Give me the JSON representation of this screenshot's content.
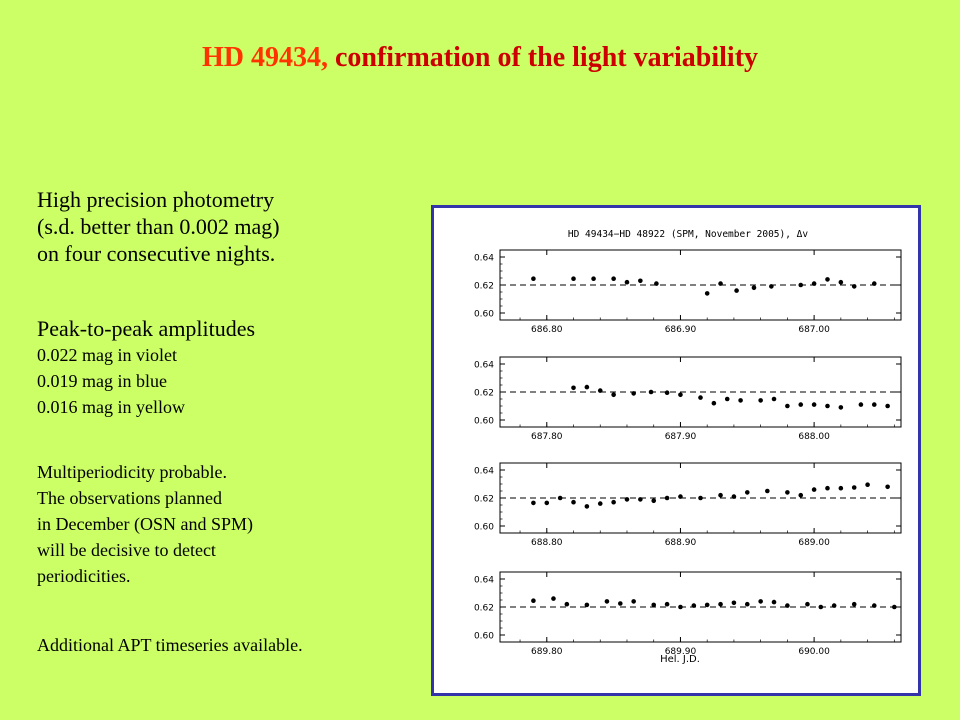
{
  "slide": {
    "title_star": "HD 49434,",
    "title_rest": "confirmation of the light variability",
    "paragraph1": [
      "High precision  photometry",
      "(s.d. better than 0.002 mag)",
      "on four consecutive nights."
    ],
    "paragraph2_heading": "Peak-to-peak amplitudes",
    "paragraph2_items": [
      "0.022 mag in violet",
      "0.019 mag in blue",
      "0.016 mag in yellow"
    ],
    "paragraph3": [
      "Multiperiodicity probable.",
      "The observations planned",
      "in December (OSN and SPM)",
      "will be decisive to detect",
      "periodicities."
    ],
    "paragraph4": "Additional APT timeseries available.",
    "colors": {
      "background": "#ccff66",
      "title_star": "#ff3300",
      "title_rest": "#cc0000",
      "frame": "#3333aa"
    }
  },
  "chart_data": {
    "type": "scatter",
    "title": "HD 49434−HD 48922 (SPM, November 2005), Δv",
    "xlabel": "Hel. J.D.",
    "ylim": [
      0.595,
      0.645
    ],
    "y_ticks": [
      "0.64",
      "0.62",
      "0.60"
    ],
    "reference_line": 0.62,
    "panels": [
      {
        "xlim": [
          686.765,
          687.065
        ],
        "x_ticks": [
          "686.80",
          "686.90",
          "687.00"
        ],
        "x": [
          686.79,
          686.82,
          686.835,
          686.85,
          686.86,
          686.87,
          686.882,
          686.92,
          686.93,
          686.942,
          686.955,
          686.968,
          686.99,
          687.0,
          687.01,
          687.02,
          687.03,
          687.045
        ],
        "y": [
          0.6245,
          0.6245,
          0.6245,
          0.6245,
          0.622,
          0.623,
          0.621,
          0.614,
          0.621,
          0.616,
          0.618,
          0.619,
          0.62,
          0.621,
          0.624,
          0.622,
          0.619,
          0.621
        ]
      },
      {
        "xlim": [
          687.765,
          688.065
        ],
        "x_ticks": [
          "687.80",
          "687.90",
          "688.00"
        ],
        "x": [
          687.82,
          687.83,
          687.84,
          687.85,
          687.865,
          687.878,
          687.89,
          687.9,
          687.915,
          687.925,
          687.935,
          687.945,
          687.96,
          687.97,
          687.98,
          687.99,
          688.0,
          688.01,
          688.02,
          688.035,
          688.045,
          688.055
        ],
        "y": [
          0.623,
          0.6235,
          0.621,
          0.618,
          0.619,
          0.62,
          0.6195,
          0.618,
          0.616,
          0.612,
          0.615,
          0.614,
          0.614,
          0.615,
          0.61,
          0.611,
          0.611,
          0.61,
          0.609,
          0.611,
          0.611,
          0.61
        ]
      },
      {
        "xlim": [
          688.765,
          689.065
        ],
        "x_ticks": [
          "688.80",
          "688.90",
          "689.00"
        ],
        "x": [
          688.79,
          688.8,
          688.81,
          688.82,
          688.83,
          688.84,
          688.85,
          688.86,
          688.87,
          688.88,
          688.89,
          688.9,
          688.915,
          688.93,
          688.94,
          688.95,
          688.965,
          688.98,
          688.99,
          689.0,
          689.01,
          689.02,
          689.03,
          689.04,
          689.055
        ],
        "y": [
          0.6165,
          0.6165,
          0.62,
          0.617,
          0.614,
          0.616,
          0.617,
          0.619,
          0.619,
          0.618,
          0.62,
          0.621,
          0.62,
          0.622,
          0.621,
          0.624,
          0.625,
          0.624,
          0.622,
          0.626,
          0.627,
          0.627,
          0.6275,
          0.6295,
          0.628
        ]
      },
      {
        "xlim": [
          689.765,
          690.065
        ],
        "x_ticks": [
          "689.80",
          "689.90",
          "690.00"
        ],
        "x": [
          689.79,
          689.805,
          689.815,
          689.83,
          689.845,
          689.855,
          689.865,
          689.88,
          689.89,
          689.9,
          689.91,
          689.92,
          689.93,
          689.94,
          689.95,
          689.96,
          689.97,
          689.98,
          689.995,
          690.005,
          690.015,
          690.03,
          690.045,
          690.06
        ],
        "y": [
          0.6245,
          0.626,
          0.622,
          0.6215,
          0.624,
          0.6225,
          0.624,
          0.6215,
          0.622,
          0.62,
          0.621,
          0.6215,
          0.622,
          0.623,
          0.622,
          0.624,
          0.6235,
          0.621,
          0.622,
          0.62,
          0.621,
          0.622,
          0.621,
          0.62
        ]
      }
    ]
  }
}
